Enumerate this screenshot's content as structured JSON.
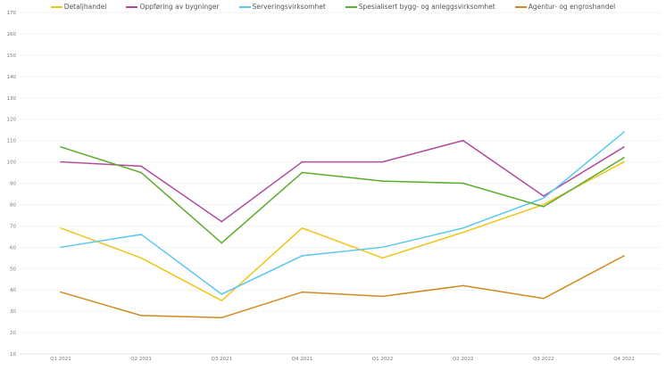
{
  "chart_data": {
    "type": "line",
    "title": "",
    "xlabel": "",
    "ylabel": "",
    "categories": [
      "Q1 2021",
      "Q2 2021",
      "Q3 2021",
      "Q4 2021",
      "Q1 2022",
      "Q2 2022",
      "Q3 2022",
      "Q4 2022"
    ],
    "yticks": [
      10,
      20,
      30,
      40,
      50,
      60,
      70,
      80,
      90,
      100,
      110,
      120,
      130,
      140,
      150,
      160,
      170
    ],
    "ylim": [
      10,
      170
    ],
    "grid": true,
    "legend_position": "top",
    "series": [
      {
        "name": "Detaljhandel",
        "color": "#f2c418",
        "values": [
          69,
          55,
          35,
          69,
          55,
          67,
          80,
          100
        ]
      },
      {
        "name": "Oppføring av bygninger",
        "color": "#b04a9e",
        "values": [
          100,
          98,
          72,
          100,
          100,
          110,
          84,
          107
        ]
      },
      {
        "name": "Serveringsvirksomhet",
        "color": "#5bc8f0",
        "values": [
          60,
          66,
          38,
          56,
          60,
          69,
          83,
          114
        ]
      },
      {
        "name": "Spesialisert bygg- og anleggsvirksomhet",
        "color": "#5aac2e",
        "values": [
          107,
          95,
          62,
          95,
          91,
          90,
          79,
          102
        ]
      },
      {
        "name": "Agentur- og engroshandel",
        "color": "#d08a1c",
        "values": [
          39,
          28,
          27,
          39,
          37,
          42,
          36,
          56
        ]
      }
    ]
  }
}
